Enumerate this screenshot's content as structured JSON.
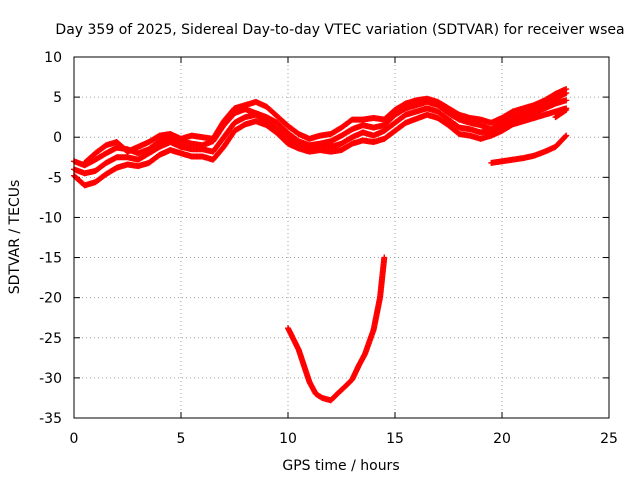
{
  "chart_data": {
    "type": "scatter",
    "title": "Day 359 of 2025, Sidereal Day-to-day VTEC variation (SDTVAR) for receiver wsea",
    "xlabel": "GPS time / hours",
    "ylabel": "SDTVAR / TECUs",
    "xlim": [
      0,
      25
    ],
    "ylim": [
      -35,
      10
    ],
    "x_ticks": [
      0,
      5,
      10,
      15,
      20,
      25
    ],
    "x_tick_labels": [
      "0",
      "5",
      "10",
      "15",
      "20",
      "25"
    ],
    "y_ticks": [
      -35,
      -30,
      -25,
      -20,
      -15,
      -10,
      -5,
      0,
      5,
      10
    ],
    "y_tick_labels": [
      "-35",
      "-30",
      "-25",
      "-20",
      "-15",
      "-10",
      "-5",
      "0",
      "5",
      "10"
    ],
    "grid": true,
    "marker_color": "#ff0000",
    "series": [
      {
        "name": "track-1",
        "points": [
          [
            0.0,
            -3.0
          ],
          [
            0.5,
            -3.5
          ],
          [
            1.0,
            -2.8
          ],
          [
            1.5,
            -2.0
          ],
          [
            2.0,
            -1.3
          ],
          [
            2.5,
            -1.5
          ],
          [
            3.0,
            -2.0
          ],
          [
            3.5,
            -1.5
          ],
          [
            4.0,
            -0.5
          ],
          [
            4.5,
            0.0
          ],
          [
            5.0,
            -0.5
          ],
          [
            5.5,
            -0.8
          ],
          [
            6.0,
            -1.0
          ],
          [
            6.5,
            -0.5
          ],
          [
            7.0,
            1.5
          ],
          [
            7.5,
            3.0
          ],
          [
            8.0,
            3.5
          ],
          [
            8.5,
            3.0
          ],
          [
            9.0,
            2.5
          ],
          [
            9.5,
            1.8
          ],
          [
            10.0,
            0.5
          ],
          [
            10.5,
            -0.5
          ],
          [
            11.0,
            -1.0
          ],
          [
            11.5,
            -0.8
          ],
          [
            12.0,
            -0.5
          ],
          [
            12.5,
            0.2
          ],
          [
            13.0,
            1.0
          ],
          [
            13.5,
            1.5
          ],
          [
            14.0,
            1.2
          ],
          [
            14.5,
            1.5
          ],
          [
            15.0,
            2.8
          ],
          [
            15.5,
            3.6
          ],
          [
            16.0,
            4.0
          ],
          [
            16.5,
            4.4
          ],
          [
            17.0,
            4.0
          ],
          [
            17.5,
            3.0
          ],
          [
            18.0,
            2.2
          ],
          [
            18.5,
            1.8
          ],
          [
            19.0,
            1.5
          ],
          [
            19.5,
            1.0
          ],
          [
            20.0,
            1.8
          ],
          [
            20.5,
            2.5
          ],
          [
            21.0,
            3.0
          ],
          [
            21.5,
            3.5
          ],
          [
            22.0,
            4.2
          ],
          [
            22.5,
            4.8
          ],
          [
            23.0,
            5.5
          ]
        ]
      },
      {
        "name": "track-2",
        "points": [
          [
            0.0,
            -4.0
          ],
          [
            0.5,
            -4.5
          ],
          [
            1.0,
            -4.2
          ],
          [
            1.5,
            -3.2
          ],
          [
            2.0,
            -2.5
          ],
          [
            2.5,
            -2.5
          ],
          [
            3.0,
            -2.8
          ],
          [
            3.5,
            -2.0
          ],
          [
            4.0,
            -1.2
          ],
          [
            4.5,
            -0.6
          ],
          [
            5.0,
            -1.2
          ],
          [
            5.5,
            -1.5
          ],
          [
            6.0,
            -1.5
          ],
          [
            6.5,
            -1.8
          ],
          [
            7.0,
            0.0
          ],
          [
            7.5,
            1.8
          ],
          [
            8.0,
            2.5
          ],
          [
            8.5,
            2.8
          ],
          [
            9.0,
            2.0
          ],
          [
            9.5,
            1.0
          ],
          [
            10.0,
            -0.2
          ],
          [
            10.5,
            -0.8
          ],
          [
            11.0,
            -1.2
          ],
          [
            11.5,
            -1.0
          ],
          [
            12.0,
            -1.2
          ],
          [
            12.5,
            -0.8
          ],
          [
            13.0,
            0.0
          ],
          [
            13.5,
            0.6
          ],
          [
            14.0,
            0.2
          ],
          [
            14.5,
            0.8
          ],
          [
            15.0,
            1.8
          ],
          [
            15.5,
            2.8
          ],
          [
            16.0,
            3.2
          ],
          [
            16.5,
            3.6
          ],
          [
            17.0,
            3.2
          ],
          [
            17.5,
            2.2
          ],
          [
            18.0,
            1.2
          ],
          [
            18.5,
            1.0
          ],
          [
            19.0,
            0.6
          ],
          [
            19.5,
            0.8
          ],
          [
            20.0,
            1.5
          ],
          [
            20.5,
            2.2
          ],
          [
            21.0,
            2.6
          ],
          [
            21.5,
            3.0
          ],
          [
            22.0,
            3.6
          ],
          [
            22.5,
            4.2
          ],
          [
            23.0,
            4.6
          ]
        ]
      },
      {
        "name": "track-3",
        "points": [
          [
            0.0,
            -4.8
          ],
          [
            0.5,
            -6.0
          ],
          [
            1.0,
            -5.6
          ],
          [
            1.5,
            -4.6
          ],
          [
            2.0,
            -3.8
          ],
          [
            2.5,
            -3.4
          ],
          [
            3.0,
            -3.6
          ],
          [
            3.5,
            -3.2
          ],
          [
            4.0,
            -2.2
          ],
          [
            4.5,
            -1.6
          ],
          [
            5.0,
            -2.0
          ],
          [
            5.5,
            -2.4
          ],
          [
            6.0,
            -2.4
          ],
          [
            6.5,
            -2.8
          ],
          [
            7.0,
            -1.2
          ],
          [
            7.5,
            0.8
          ],
          [
            8.0,
            1.6
          ],
          [
            8.5,
            2.0
          ],
          [
            9.0,
            1.5
          ],
          [
            9.5,
            0.5
          ],
          [
            10.0,
            -0.8
          ],
          [
            10.5,
            -1.4
          ],
          [
            11.0,
            -1.8
          ],
          [
            11.5,
            -1.6
          ],
          [
            12.0,
            -1.8
          ],
          [
            12.5,
            -1.6
          ],
          [
            13.0,
            -0.8
          ],
          [
            13.5,
            -0.4
          ],
          [
            14.0,
            -0.6
          ],
          [
            14.5,
            -0.2
          ],
          [
            15.0,
            0.8
          ],
          [
            15.5,
            1.8
          ],
          [
            16.0,
            2.3
          ],
          [
            16.5,
            2.8
          ],
          [
            17.0,
            2.4
          ],
          [
            17.5,
            1.5
          ],
          [
            18.0,
            0.4
          ],
          [
            18.5,
            0.2
          ],
          [
            19.0,
            -0.2
          ],
          [
            19.5,
            0.2
          ],
          [
            20.0,
            0.8
          ],
          [
            20.5,
            1.6
          ],
          [
            21.0,
            2.0
          ],
          [
            21.5,
            2.4
          ],
          [
            22.0,
            2.8
          ],
          [
            22.5,
            3.2
          ],
          [
            23.0,
            3.6
          ]
        ]
      },
      {
        "name": "track-4",
        "points": [
          [
            0.5,
            -3.2
          ],
          [
            1.0,
            -2.0
          ],
          [
            1.5,
            -1.0
          ],
          [
            2.0,
            -0.6
          ],
          [
            2.5,
            -1.8
          ],
          [
            3.0,
            -1.2
          ],
          [
            3.5,
            -0.6
          ],
          [
            4.0,
            0.2
          ],
          [
            4.5,
            0.4
          ],
          [
            5.0,
            -0.2
          ],
          [
            5.5,
            0.2
          ],
          [
            6.0,
            0.0
          ],
          [
            6.5,
            -0.2
          ],
          [
            7.0,
            2.0
          ],
          [
            7.5,
            3.6
          ],
          [
            8.0,
            4.0
          ],
          [
            8.5,
            4.4
          ],
          [
            9.0,
            3.8
          ],
          [
            9.5,
            2.6
          ],
          [
            10.0,
            1.4
          ],
          [
            10.5,
            0.4
          ],
          [
            11.0,
            -0.2
          ],
          [
            11.5,
            0.2
          ],
          [
            12.0,
            0.4
          ],
          [
            12.5,
            1.2
          ],
          [
            13.0,
            2.2
          ],
          [
            13.5,
            2.2
          ],
          [
            14.0,
            2.4
          ],
          [
            14.5,
            2.2
          ],
          [
            15.0,
            3.4
          ],
          [
            15.5,
            4.2
          ],
          [
            16.0,
            4.6
          ],
          [
            16.5,
            4.8
          ],
          [
            17.0,
            4.4
          ],
          [
            17.5,
            3.6
          ],
          [
            18.0,
            2.8
          ],
          [
            18.5,
            2.4
          ],
          [
            19.0,
            2.2
          ],
          [
            19.5,
            1.8
          ],
          [
            20.0,
            2.4
          ],
          [
            20.5,
            3.2
          ],
          [
            21.0,
            3.6
          ],
          [
            21.5,
            4.0
          ],
          [
            22.0,
            4.6
          ],
          [
            22.5,
            5.4
          ],
          [
            23.0,
            6.0
          ]
        ]
      },
      {
        "name": "track-5",
        "points": [
          [
            19.5,
            -3.2
          ],
          [
            20.0,
            -3.0
          ],
          [
            20.5,
            -2.8
          ],
          [
            21.0,
            -2.6
          ],
          [
            21.5,
            -2.3
          ],
          [
            22.0,
            -1.8
          ],
          [
            22.5,
            -1.2
          ],
          [
            23.0,
            0.2
          ]
        ]
      },
      {
        "name": "track-6",
        "points": [
          [
            22.5,
            2.5
          ],
          [
            23.0,
            3.4
          ]
        ]
      },
      {
        "name": "track-7",
        "points": [
          [
            10.0,
            -23.8
          ],
          [
            10.5,
            -26.5
          ],
          [
            11.0,
            -30.5
          ],
          [
            11.3,
            -32.0
          ],
          [
            11.6,
            -32.5
          ],
          [
            12.0,
            -32.8
          ],
          [
            12.3,
            -32.0
          ],
          [
            12.7,
            -31.0
          ],
          [
            13.0,
            -30.2
          ],
          [
            13.3,
            -28.5
          ],
          [
            13.6,
            -27.0
          ],
          [
            14.0,
            -24.0
          ],
          [
            14.3,
            -20.0
          ],
          [
            14.5,
            -15.0
          ]
        ]
      }
    ]
  }
}
